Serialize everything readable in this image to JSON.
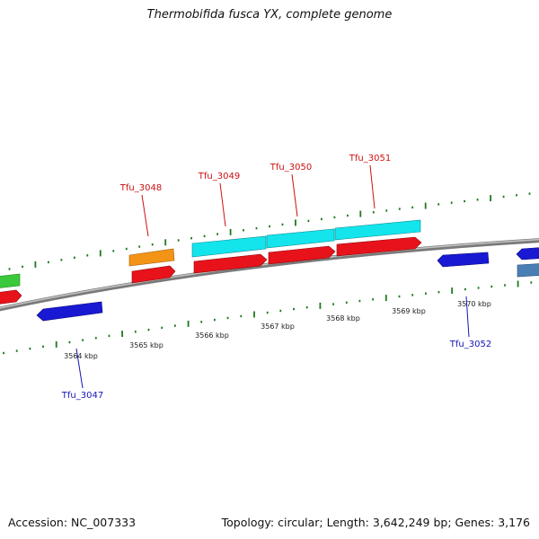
{
  "title": "Thermobifida fusca YX, complete genome",
  "footer": {
    "accession": "Accession: NC_007333",
    "stats": "Topology: circular; Length: 3,642,249 bp; Genes: 3,176"
  },
  "kbp_labels": [
    "3564 kbp",
    "3565 kbp",
    "3566 kbp",
    "3567 kbp",
    "3568 kbp",
    "3569 kbp",
    "3570 kbp"
  ],
  "gene_labels": {
    "tfu_3047": "Tfu_3047",
    "tfu_3048": "Tfu_3048",
    "tfu_3049": "Tfu_3049",
    "tfu_3050": "Tfu_3050",
    "tfu_3051": "Tfu_3051",
    "tfu_3052": "Tfu_3052"
  },
  "colors": {
    "backbone": "#8c8c8c",
    "tick_green": "#1d7a1d",
    "forward_cds": "#e8121b",
    "reverse_cds": "#1919d4",
    "orange_feature": "#f39416",
    "cyan_feature": "#14e4ec",
    "green_feature": "#3cc83c",
    "steel_feature": "#4a7fb6",
    "label_red": "#cc1111",
    "label_blue": "#1515bb"
  }
}
